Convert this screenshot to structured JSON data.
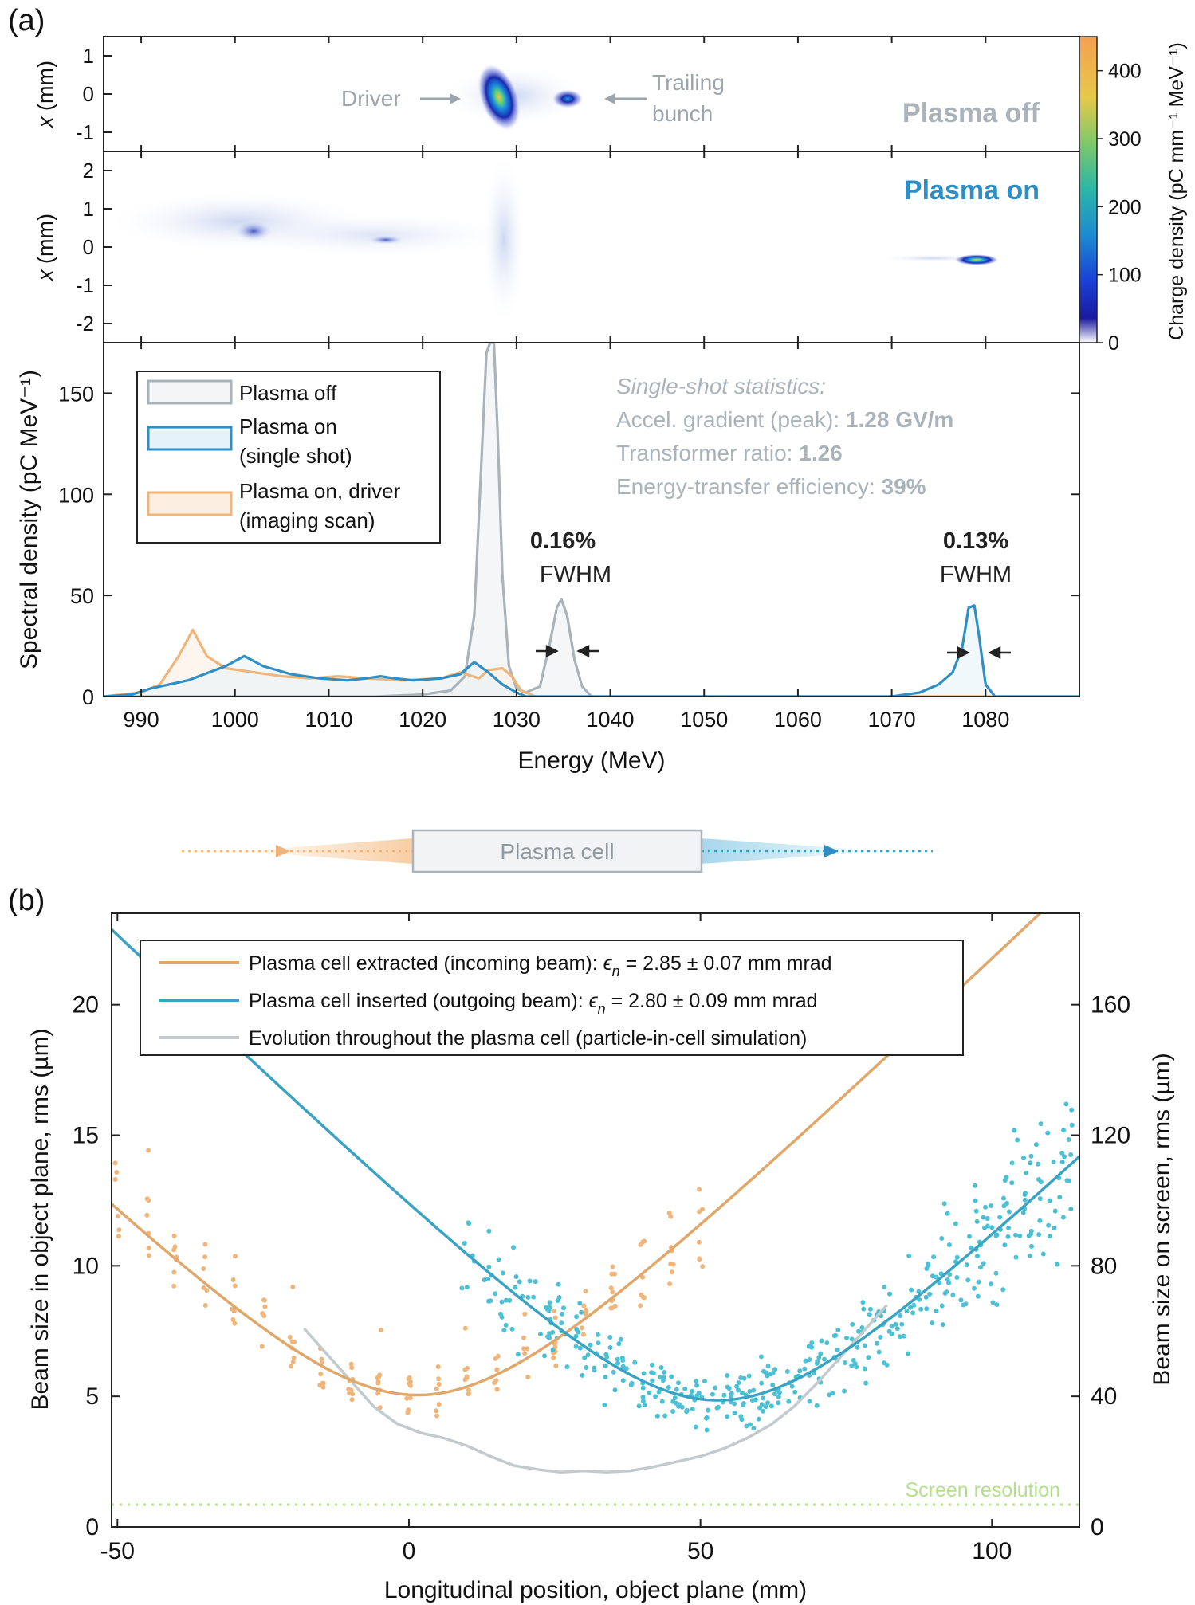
{
  "panel_labels": {
    "a": "(a)",
    "b": "(b)"
  },
  "colors": {
    "off": "#a9b3b9",
    "on": "#2f8fc4",
    "driver": "#efb57a",
    "trail_b": "#3aa3c2",
    "orange_b": "#e0a76a",
    "sim": "#c3cacd",
    "screen_res": "#b4e08e",
    "dark": "#222222"
  },
  "annotations": {
    "driver": "Driver",
    "trailing_1": "Trailing",
    "trailing_2": "bunch",
    "plasma_off": "Plasma off",
    "plasma_on": "Plasma on",
    "fwhm1_pct": "0.16%",
    "fwhm1_lbl": "FWHM",
    "fwhm2_pct": "0.13%",
    "fwhm2_lbl": "FWHM",
    "stats_title": "Single-shot statistics:",
    "stat1_label": "Accel. gradient (peak): ",
    "stat1_value": "1.28 GV/m",
    "stat2_label": "Transformer ratio: ",
    "stat2_value": "1.26",
    "stat3_label": "Energy-transfer efficiency: ",
    "stat3_value": "39%",
    "plasma_cell": "Plasma cell",
    "screen_resolution": "Screen resolution"
  },
  "colorbar": {
    "label": "Charge density (pC mm⁻¹ MeV⁻¹)",
    "ticks": [
      0,
      100,
      200,
      300,
      400
    ],
    "range": [
      0,
      450
    ]
  },
  "chart_data": [
    {
      "type": "heatmap",
      "name": "Plasma off",
      "xlabel": "",
      "ylabel": "x (mm)",
      "yticks": [
        1,
        0,
        -1
      ],
      "ylim": [
        -1.5,
        1.5
      ],
      "blobs": [
        {
          "energy": 1027.5,
          "x": 0.1,
          "peak": 420
        },
        {
          "energy": 1034.8,
          "x": 0.0,
          "peak": 160
        }
      ]
    },
    {
      "type": "heatmap",
      "name": "Plasma on",
      "xlabel": "",
      "ylabel": "x (mm)",
      "yticks": [
        2,
        1,
        0,
        -1,
        -2
      ],
      "ylim": [
        -2.5,
        2.5
      ],
      "blobs": [
        {
          "energy": 1001,
          "x": 0.4,
          "peak": 40
        },
        {
          "energy": 1016,
          "x": 0.15,
          "peak": 90
        },
        {
          "energy": 1078.5,
          "x": -0.4,
          "peak": 380
        }
      ]
    },
    {
      "type": "line",
      "xlabel": "Energy (MeV)",
      "ylabel": "Spectral density (pC MeV⁻¹)",
      "xlim": [
        986,
        1090
      ],
      "ylim": [
        0,
        175
      ],
      "xticks": [
        990,
        1000,
        1010,
        1020,
        1030,
        1040,
        1050,
        1060,
        1070,
        1080
      ],
      "yticks": [
        0,
        50,
        100,
        150
      ],
      "legend_position": "top-left",
      "series": [
        {
          "name": "Plasma off",
          "x": [
            986,
            1015,
            1020,
            1023,
            1024.5,
            1025.5,
            1026.3,
            1026.8,
            1027.2,
            1027.6,
            1028.0,
            1028.5,
            1029.2,
            1030,
            1031,
            1032.5,
            1033.5,
            1034.3,
            1034.8,
            1035.4,
            1036.2,
            1037,
            1038,
            1090
          ],
          "y": [
            0,
            0,
            1,
            3,
            10,
            40,
            120,
            170,
            175,
            175,
            130,
            60,
            15,
            4,
            2,
            5,
            25,
            44,
            48,
            40,
            18,
            5,
            0,
            0
          ]
        },
        {
          "name": "Plasma on (single shot)",
          "x": [
            986,
            989,
            991,
            995,
            999,
            1001,
            1003,
            1006,
            1009,
            1012,
            1014,
            1015.5,
            1017,
            1019,
            1022,
            1024,
            1025.5,
            1027,
            1028.5,
            1030,
            1031,
            1070,
            1073,
            1075,
            1076.5,
            1077.5,
            1078.2,
            1078.8,
            1079.3,
            1080,
            1081,
            1090
          ],
          "y": [
            0,
            1,
            4,
            8,
            15,
            20,
            15,
            11,
            9,
            8,
            9,
            10,
            9,
            8,
            9,
            11,
            17,
            12,
            6,
            2,
            0,
            0,
            2,
            6,
            12,
            24,
            44,
            45,
            30,
            6,
            0,
            0
          ]
        },
        {
          "name": "Plasma on, driver (imaging scan)",
          "x": [
            986,
            990,
            992,
            994,
            995.5,
            997,
            999,
            1002,
            1005,
            1008,
            1011,
            1014,
            1018,
            1022,
            1024,
            1026,
            1027,
            1028.5,
            1029.5,
            1030.5,
            1032,
            1090
          ],
          "y": [
            0,
            2,
            6,
            20,
            33,
            20,
            14,
            12,
            10,
            9,
            10,
            9,
            8,
            9,
            12,
            9,
            13,
            14,
            10,
            3,
            0,
            0
          ]
        }
      ]
    },
    {
      "type": "scatter",
      "xlabel": "Longitudinal position, object plane (mm)",
      "ylabel": "Beam size in object plane, rms (µm)",
      "y2label": "Beam size on screen, rms (µm)",
      "xlim": [
        -51,
        115
      ],
      "ylim": [
        0,
        23.5
      ],
      "xticks": [
        -50,
        0,
        50,
        100
      ],
      "yticks": [
        0,
        5,
        10,
        15,
        20
      ],
      "y2ticks": [
        40,
        80,
        120,
        160
      ],
      "y2_scale": 8,
      "legend_position": "top",
      "series": [
        {
          "name": "Plasma cell extracted (incoming beam): εₙ = 2.85 ± 0.07 mm mrad",
          "fit_waist_z": 1.5,
          "fit_waist_size": 5.05,
          "fit_slope": 0.215,
          "scan_z": [
            -50,
            -45,
            -40,
            -35,
            -30,
            -25,
            -20,
            -15,
            -10,
            -5,
            0,
            5,
            10,
            15,
            20,
            25,
            30,
            35,
            40,
            45,
            50
          ]
        },
        {
          "name": "Plasma cell inserted (outgoing beam): εₙ = 2.80 ± 0.09 mm mrad",
          "fit_waist_z": 53,
          "fit_waist_size": 4.85,
          "fit_slope": 0.215,
          "scatter_z_range": [
            9,
            114
          ]
        },
        {
          "name": "Evolution throughout the plasma cell (particle-in-cell simulation)",
          "x": [
            -18,
            -14,
            -10,
            -6,
            -2,
            2,
            6,
            10,
            14,
            18,
            22,
            26,
            30,
            34,
            38,
            42,
            46,
            50,
            54,
            58,
            62,
            66,
            70,
            74,
            78,
            82
          ],
          "y": [
            7.6,
            6.6,
            5.6,
            4.6,
            3.95,
            3.6,
            3.4,
            3.1,
            2.7,
            2.35,
            2.2,
            2.1,
            2.15,
            2.1,
            2.15,
            2.3,
            2.5,
            2.7,
            3.0,
            3.4,
            3.9,
            4.6,
            5.5,
            6.5,
            7.5,
            8.5
          ]
        }
      ],
      "screen_resolution_y": 0.85
    }
  ]
}
